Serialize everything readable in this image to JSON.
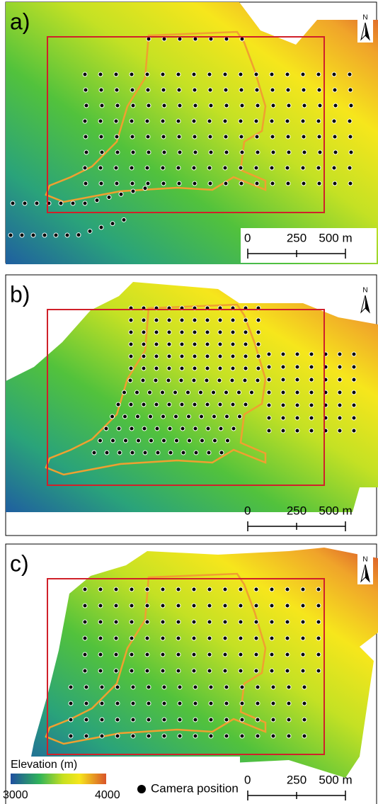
{
  "panels": [
    {
      "label": "a)",
      "north": "N",
      "scale_labels": [
        0,
        250,
        "500 m"
      ]
    },
    {
      "label": "b)",
      "north": "N",
      "scale_labels": [
        0,
        250,
        "500 m"
      ]
    },
    {
      "label": "c)",
      "north": "N",
      "scale_labels": [
        0,
        250,
        "500 m"
      ]
    }
  ],
  "legend": {
    "title": "Elevation (m)",
    "min": 3000,
    "max": 4000,
    "camera": "Camera position"
  }
}
